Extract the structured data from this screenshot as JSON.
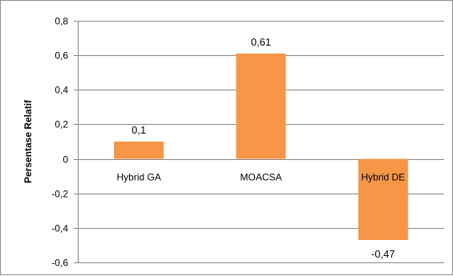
{
  "chart_data": {
    "type": "bar",
    "title": "",
    "xlabel": "",
    "ylabel": "Persentase Relatif",
    "categories": [
      "Hybrid GA",
      "MOACSA",
      "Hybrid DE"
    ],
    "values": [
      0.1,
      0.61,
      -0.47
    ],
    "data_labels": [
      "0,1",
      "0,61",
      "-0,47"
    ],
    "ylim": [
      -0.6,
      0.8
    ],
    "yticks": [
      -0.6,
      -0.4,
      -0.2,
      0,
      0.2,
      0.4,
      0.6,
      0.8
    ],
    "ytick_labels": [
      "-0,6",
      "-0,4",
      "-0,2",
      "0",
      "0,2",
      "0,4",
      "0,6",
      "0,8"
    ],
    "grid": true,
    "legend": "none",
    "colors": {
      "bar": "#f79646",
      "grid": "#868686",
      "axis": "#868686"
    }
  }
}
